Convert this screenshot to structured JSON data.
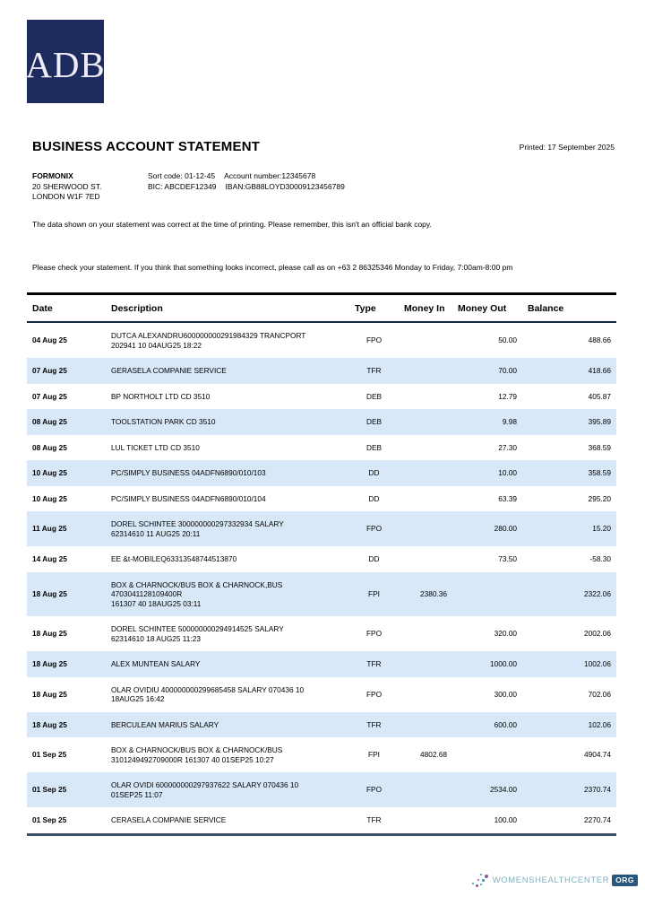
{
  "brand": {
    "logo_text": "ADB"
  },
  "header": {
    "title": "BUSINESS ACCOUNT STATEMENT",
    "printed": "Printed: 17 September 2025"
  },
  "account": {
    "name": "FORMONIX",
    "address_line1": "20 SHERWOOD ST.",
    "address_line2": "LONDON W1F 7ED",
    "sort_code": "Sort code: 01-12-45",
    "account_number": "Account number:12345678",
    "bic": "BIC: ABCDEF12349",
    "iban": "IBAN:GB88LOYD30009123456789"
  },
  "notices": {
    "printing": "The data shown on your statement was correct at the time of printing. Please remember, this isn't an official bank copy.",
    "check": "Please check your statement. If you think that something looks incorrect, please call as on +63 2 86325346 Monday to Friday, 7:00am-8:00 pm"
  },
  "table": {
    "columns": [
      "Date",
      "Description",
      "Type",
      "Money In",
      "Money Out",
      "Balance"
    ],
    "rows": [
      {
        "date": "04 Aug 25",
        "description": [
          "DUTCA ALEXANDRU600000000291984329 TRANCPORT",
          "202941 10 04AUG25 18:22"
        ],
        "type": "FPO",
        "money_in": "",
        "money_out": "50.00",
        "balance": "488.66",
        "shaded": false
      },
      {
        "date": "07 Aug 25",
        "description": [
          "GERASELA COMPANIE SERVICE"
        ],
        "type": "TFR",
        "money_in": "",
        "money_out": "70.00",
        "balance": "418.66",
        "shaded": true
      },
      {
        "date": "07 Aug 25",
        "description": [
          "BP NORTHOLT LTD CD 3510"
        ],
        "type": "DEB",
        "money_in": "",
        "money_out": "12.79",
        "balance": "405.87",
        "shaded": false
      },
      {
        "date": "08 Aug 25",
        "description": [
          "TOOLSTATION PARK CD 3510"
        ],
        "type": "DEB",
        "money_in": "",
        "money_out": "9.98",
        "balance": "395.89",
        "shaded": true
      },
      {
        "date": "08 Aug 25",
        "description": [
          "LUL TICKET LTD CD 3510"
        ],
        "type": "DEB",
        "money_in": "",
        "money_out": "27.30",
        "balance": "368.59",
        "shaded": false
      },
      {
        "date": "10 Aug 25",
        "description": [
          "PC/SIMPLY BUSINESS 04ADFN6890/010/103"
        ],
        "type": "DD",
        "money_in": "",
        "money_out": "10.00",
        "balance": "358.59",
        "shaded": true
      },
      {
        "date": "10 Aug 25",
        "description": [
          "PC/SIMPLY BUSINESS 04ADFN6890/010/104"
        ],
        "type": "DD",
        "money_in": "",
        "money_out": "63.39",
        "balance": "295.20",
        "shaded": false
      },
      {
        "date": "11 Aug 25",
        "description": [
          "DOREL SCHINTEE 300000000297332934 SALARY",
          "62314610 11 AUG25 20:11"
        ],
        "type": "FPO",
        "money_in": "",
        "money_out": "280.00",
        "balance": "15.20",
        "shaded": true
      },
      {
        "date": "14 Aug 25",
        "description": [
          "EE &t-MOBILEQ63313548744513870"
        ],
        "type": "DD",
        "money_in": "",
        "money_out": "73.50",
        "balance": "-58.30",
        "shaded": false
      },
      {
        "date": "18 Aug 25",
        "description": [
          "BOX & CHARNOCK/BUS BOX & CHARNOCK,BUS 4703041128109400R",
          "161307 40 18AUG25 03:11"
        ],
        "type": "FPI",
        "money_in": "2380.36",
        "money_out": "",
        "balance": "2322.06",
        "shaded": true
      },
      {
        "date": "18 Aug 25",
        "description": [
          "DOREL SCHINTEE 500000000294914525 SALARY",
          "62314610 18 AUG25 11:23"
        ],
        "type": "FPO",
        "money_in": "",
        "money_out": "320.00",
        "balance": "2002.06",
        "shaded": false
      },
      {
        "date": "18 Aug 25",
        "description": [
          "ALEX MUNTEAN SALARY"
        ],
        "type": "TFR",
        "money_in": "",
        "money_out": "1000.00",
        "balance": "1002.06",
        "shaded": true
      },
      {
        "date": "18 Aug 25",
        "description": [
          "OLAR OVIDIU 400000000299685458 SALARY 070436 10",
          "18AUG25 16:42"
        ],
        "type": "FPO",
        "money_in": "",
        "money_out": "300.00",
        "balance": "702.06",
        "shaded": false
      },
      {
        "date": "18 Aug 25",
        "description": [
          "BERCULEAN MARIUS SALARY"
        ],
        "type": "TFR",
        "money_in": "",
        "money_out": "600.00",
        "balance": "102.06",
        "shaded": true
      },
      {
        "date": "01 Sep 25",
        "description": [
          "BOX & CHARNOCK/BUS BOX & CHARNOCK/BUS",
          "3101249492709000R 161307 40 01SEP25 10:27"
        ],
        "type": "FPI",
        "money_in": "4802.68",
        "money_out": "",
        "balance": "4904.74",
        "shaded": false
      },
      {
        "date": "01 Sep 25",
        "description": [
          "OLAR OVIDI 600000000297937622 SALARY 070436 10",
          "01SEP25 11:07"
        ],
        "type": "FPO",
        "money_in": "",
        "money_out": "2534.00",
        "balance": "2370.74",
        "shaded": true
      },
      {
        "date": "01 Sep 25",
        "description": [
          "CERASELA COMPANIE SERVICE"
        ],
        "type": "TFR",
        "money_in": "",
        "money_out": "100.00",
        "balance": "2270.74",
        "shaded": false
      }
    ]
  },
  "footer": {
    "site_name": "WOMENSHEALTHCENTER",
    "site_tld": "ORG"
  },
  "colors": {
    "logo_background": "#1e2b5e",
    "row_shade": "#d9e8f8",
    "table_bottom_border": "#3a4f63",
    "footer_text": "#7fb0bd",
    "footer_badge": "#28567f",
    "footer_dot_teal": "#3d93a5",
    "footer_dot_purple": "#8a56a5"
  }
}
